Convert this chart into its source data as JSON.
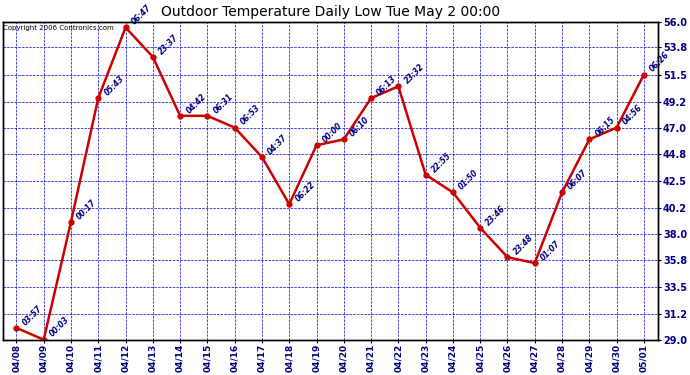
{
  "title": "Outdoor Temperature Daily Low Tue May 2 00:00",
  "copyright": "Copyright 2006 Contronics.com",
  "outer_bg": "#ffffff",
  "plot_bg_color": "#ffffff",
  "line_color": "#cc0000",
  "marker_color": "#cc0000",
  "grid_color": "#0000cc",
  "text_color": "#000080",
  "label_color": "#000080",
  "x_labels": [
    "04/08",
    "04/09",
    "04/10",
    "04/11",
    "04/12",
    "04/13",
    "04/14",
    "04/15",
    "04/16",
    "04/17",
    "04/18",
    "04/19",
    "04/20",
    "04/21",
    "04/22",
    "04/23",
    "04/24",
    "04/25",
    "04/26",
    "04/27",
    "04/28",
    "04/29",
    "04/30",
    "05/01"
  ],
  "y_values": [
    30.0,
    29.0,
    39.0,
    49.5,
    55.5,
    53.0,
    48.0,
    48.0,
    47.0,
    44.5,
    40.5,
    45.5,
    46.0,
    49.5,
    50.5,
    43.0,
    41.5,
    38.5,
    36.0,
    35.5,
    41.5,
    46.0,
    47.0,
    51.5
  ],
  "point_labels": [
    "03:57",
    "00:03",
    "00:17",
    "05:43",
    "06:47",
    "23:37",
    "04:42",
    "06:31",
    "06:53",
    "04:37",
    "06:22",
    "00:00",
    "06:10",
    "06:13",
    "23:32",
    "22:55",
    "01:50",
    "23:46",
    "23:48",
    "01:07",
    "06:07",
    "06:15",
    "04:56",
    "06:26"
  ],
  "ylim": [
    29.0,
    56.0
  ],
  "yticks": [
    29.0,
    31.2,
    33.5,
    35.8,
    38.0,
    40.2,
    42.5,
    44.8,
    47.0,
    49.2,
    51.5,
    53.8,
    56.0
  ],
  "ylabel_right": [
    "29.0",
    "31.2",
    "33.5",
    "35.8",
    "38.0",
    "40.2",
    "42.5",
    "44.8",
    "47.0",
    "49.2",
    "51.5",
    "53.8",
    "56.0"
  ]
}
